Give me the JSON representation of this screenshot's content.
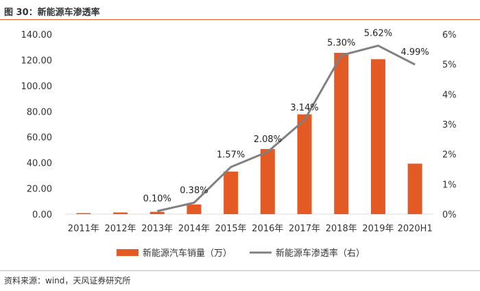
{
  "header": {
    "title": "图 30：新能源车渗透率"
  },
  "footer": {
    "source": "资料来源：wind，天风证券研究所"
  },
  "colors": {
    "bar": "#e35a24",
    "line": "#808080",
    "axis": "#d9d9d9",
    "accent_rule": "#e35a24"
  },
  "chart_data": {
    "type": "bar",
    "title": "新能源车渗透率",
    "categories": [
      "2011年",
      "2012年",
      "2013年",
      "2014年",
      "2015年",
      "2016年",
      "2017年",
      "2018年",
      "2019年",
      "2020H1"
    ],
    "series": [
      {
        "name": "新能源汽车销量（万）",
        "type": "bar",
        "axis": "left",
        "values": [
          0.8,
          1.3,
          1.8,
          7.5,
          33.1,
          50.7,
          77.7,
          125.6,
          120.6,
          39.3
        ]
      },
      {
        "name": "新能源车渗透率（右）",
        "type": "line",
        "axis": "right",
        "values": [
          null,
          null,
          0.1,
          0.38,
          1.57,
          2.08,
          3.14,
          5.3,
          5.62,
          4.99
        ],
        "labels": [
          "",
          "",
          "0.10%",
          "0.38%",
          "1.57%",
          "2.08%",
          "3.14%",
          "5.30%",
          "5.62%",
          "4.99%"
        ]
      }
    ],
    "y_left": {
      "ylim": [
        0,
        140
      ],
      "ticks": [
        0,
        20,
        40,
        60,
        80,
        100,
        120,
        140
      ],
      "tick_labels": [
        "0.00",
        "20.00",
        "40.00",
        "60.00",
        "80.00",
        "100.00",
        "120.00",
        "140.00"
      ]
    },
    "y_right": {
      "ylim": [
        0,
        6
      ],
      "ticks": [
        0,
        1,
        2,
        3,
        4,
        5,
        6
      ],
      "tick_labels": [
        "0%",
        "1%",
        "2%",
        "3%",
        "4%",
        "5%",
        "6%"
      ]
    },
    "legend": {
      "position": "bottom",
      "entries": [
        "新能源汽车销量（万）",
        "新能源车渗透率（右）"
      ]
    },
    "grid": false
  }
}
